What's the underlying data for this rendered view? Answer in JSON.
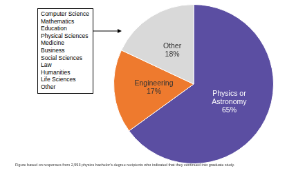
{
  "chart_data": {
    "type": "pie",
    "categories": [
      "Physics or Astronomy",
      "Engineering",
      "Other"
    ],
    "values": [
      65,
      17,
      18
    ],
    "value_labels": [
      "65%",
      "17%",
      "18%"
    ],
    "colors": [
      "#5b4ea2",
      "#ee7a2e",
      "#d9d9d9"
    ],
    "data_labels": true,
    "annotations": [
      "Computer Science",
      "Mathematics",
      "Education",
      "Physical Sciences",
      "Medicine",
      "Business",
      "Social Sciences",
      "Law",
      "Humanities",
      "Life Sciences",
      "Other"
    ],
    "footnote": "Figure based on responses from 2,593 physics bachelor’s degree recipients who indicated that they continued into graduate study."
  }
}
